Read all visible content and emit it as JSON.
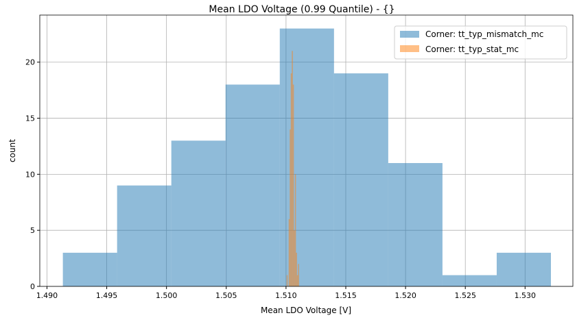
{
  "chart_data": {
    "type": "bar",
    "title": "Mean LDO Voltage (0.99 Quantile) - {}",
    "xlabel": "Mean LDO Voltage [V]",
    "ylabel": "count",
    "xlim": [
      1.4894,
      1.534
    ],
    "ylim": [
      0,
      24.2
    ],
    "xticks": [
      "1.490",
      "1.495",
      "1.500",
      "1.505",
      "1.510",
      "1.515",
      "1.520",
      "1.525",
      "1.530"
    ],
    "yticks": [
      "0",
      "5",
      "10",
      "15",
      "20"
    ],
    "grid": true,
    "legend_position": "top-right",
    "series": [
      {
        "name": "Corner: tt_typ_mismatch_mc",
        "color": "#1f77b4",
        "alpha": 0.5,
        "bin_start": 1.49133,
        "bin_width": 0.004537,
        "values": [
          3,
          9,
          13,
          18,
          23,
          19,
          11,
          1,
          3
        ]
      },
      {
        "name": "Corner: tt_typ_stat_mc",
        "color": "#ff7f0e",
        "alpha": 0.5,
        "bin_start": 1.51005,
        "bin_width": 8.68e-05,
        "values": [
          1,
          0,
          6,
          14,
          19,
          21,
          18,
          5,
          10,
          3,
          1,
          2
        ]
      }
    ]
  }
}
